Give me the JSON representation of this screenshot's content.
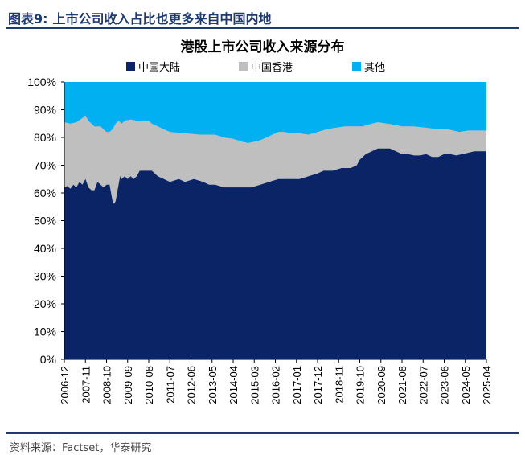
{
  "figure": {
    "number": "图表9:",
    "title": "上市公司收入占比也更多来自中国内地"
  },
  "source": "资料来源：Factset，华泰研究",
  "colors": {
    "mainland": "#0b2466",
    "hongkong": "#bfbfbf",
    "other": "#00b0f0",
    "brand": "#1f3b6e"
  },
  "chart_data": {
    "type": "area",
    "stacked": true,
    "title": "港股上市公司收入来源分布",
    "legend_position": "top",
    "yaxis": {
      "range": [
        0,
        100
      ],
      "unit": "%",
      "ticks": [
        "0%",
        "10%",
        "20%",
        "30%",
        "40%",
        "50%",
        "60%",
        "70%",
        "80%",
        "90%",
        "100%"
      ]
    },
    "x_ticks": [
      "2006-12",
      "2007-11",
      "2008-10",
      "2009-09",
      "2010-08",
      "2011-07",
      "2012-06",
      "2013-05",
      "2014-04",
      "2015-03",
      "2016-02",
      "2017-01",
      "2017-12",
      "2018-11",
      "2019-10",
      "2020-09",
      "2021-08",
      "2022-07",
      "2023-06",
      "2024-05",
      "2025-04"
    ],
    "series": [
      {
        "name": "中国大陆",
        "color_key": "mainland",
        "points": [
          [
            0,
            62
          ],
          [
            2,
            62.5
          ],
          [
            4,
            61.5
          ],
          [
            6,
            63
          ],
          [
            8,
            62
          ],
          [
            10,
            64
          ],
          [
            12,
            63
          ],
          [
            14,
            65
          ],
          [
            16,
            62
          ],
          [
            18,
            61
          ],
          [
            20,
            61
          ],
          [
            22,
            64
          ],
          [
            24,
            63
          ],
          [
            26,
            62
          ],
          [
            28,
            63
          ],
          [
            30,
            63
          ],
          [
            32,
            57
          ],
          [
            33,
            56
          ],
          [
            34,
            57
          ],
          [
            36,
            63
          ],
          [
            37,
            66
          ],
          [
            38,
            65
          ],
          [
            40,
            66
          ],
          [
            42,
            65
          ],
          [
            44,
            66
          ],
          [
            46,
            65
          ],
          [
            48,
            66
          ],
          [
            50,
            68
          ],
          [
            54,
            68
          ],
          [
            58,
            68
          ],
          [
            62,
            66
          ],
          [
            66,
            65
          ],
          [
            70,
            64
          ],
          [
            76,
            65
          ],
          [
            80,
            64
          ],
          [
            86,
            65
          ],
          [
            92,
            64
          ],
          [
            96,
            63
          ],
          [
            100,
            63
          ],
          [
            106,
            62
          ],
          [
            112,
            62
          ],
          [
            118,
            62
          ],
          [
            124,
            62
          ],
          [
            130,
            63
          ],
          [
            136,
            64
          ],
          [
            142,
            65
          ],
          [
            146,
            65
          ],
          [
            150,
            65
          ],
          [
            156,
            65
          ],
          [
            162,
            66
          ],
          [
            168,
            67
          ],
          [
            172,
            68
          ],
          [
            178,
            68
          ],
          [
            184,
            69
          ],
          [
            190,
            69
          ],
          [
            194,
            70
          ],
          [
            196,
            72
          ],
          [
            200,
            74
          ],
          [
            204,
            75
          ],
          [
            208,
            76
          ],
          [
            212,
            76
          ],
          [
            216,
            76
          ],
          [
            220,
            75
          ],
          [
            224,
            74
          ],
          [
            228,
            74
          ],
          [
            232,
            73.5
          ],
          [
            236,
            73.5
          ],
          [
            240,
            74
          ],
          [
            244,
            73
          ],
          [
            248,
            73
          ],
          [
            252,
            74
          ],
          [
            256,
            74
          ],
          [
            260,
            73.5
          ],
          [
            264,
            74
          ],
          [
            268,
            74.5
          ],
          [
            272,
            75
          ],
          [
            280,
            75
          ]
        ]
      },
      {
        "name": "中国香港",
        "color_key": "hongkong",
        "points": [
          [
            0,
            85.5
          ],
          [
            4,
            85
          ],
          [
            8,
            85.5
          ],
          [
            12,
            87
          ],
          [
            14,
            88
          ],
          [
            16,
            86
          ],
          [
            18,
            85
          ],
          [
            20,
            84
          ],
          [
            24,
            84
          ],
          [
            26,
            83
          ],
          [
            28,
            82
          ],
          [
            30,
            82
          ],
          [
            32,
            83
          ],
          [
            34,
            85
          ],
          [
            36,
            86
          ],
          [
            38,
            85
          ],
          [
            40,
            86
          ],
          [
            44,
            86.5
          ],
          [
            48,
            86
          ],
          [
            52,
            86
          ],
          [
            56,
            86
          ],
          [
            58,
            85
          ],
          [
            62,
            84
          ],
          [
            66,
            83
          ],
          [
            70,
            82
          ],
          [
            80,
            81.5
          ],
          [
            90,
            81
          ],
          [
            100,
            81
          ],
          [
            106,
            80
          ],
          [
            112,
            79.5
          ],
          [
            118,
            78.5
          ],
          [
            122,
            78
          ],
          [
            126,
            78.5
          ],
          [
            130,
            79
          ],
          [
            134,
            80
          ],
          [
            138,
            81
          ],
          [
            142,
            82
          ],
          [
            146,
            82
          ],
          [
            150,
            81.5
          ],
          [
            156,
            81.5
          ],
          [
            162,
            81
          ],
          [
            168,
            82
          ],
          [
            174,
            83
          ],
          [
            180,
            83.5
          ],
          [
            186,
            84
          ],
          [
            194,
            84
          ],
          [
            198,
            84
          ],
          [
            204,
            85
          ],
          [
            208,
            85.5
          ],
          [
            214,
            85
          ],
          [
            220,
            84.5
          ],
          [
            224,
            84
          ],
          [
            232,
            84
          ],
          [
            240,
            83.5
          ],
          [
            248,
            83
          ],
          [
            254,
            83
          ],
          [
            258,
            82.5
          ],
          [
            262,
            82
          ],
          [
            268,
            82.5
          ],
          [
            272,
            82.5
          ],
          [
            280,
            82.5
          ]
        ]
      },
      {
        "name": "其他",
        "color_key": "other",
        "points": [
          [
            0,
            100
          ],
          [
            280,
            100
          ]
        ]
      }
    ],
    "x_index_range": [
      0,
      280
    ]
  }
}
